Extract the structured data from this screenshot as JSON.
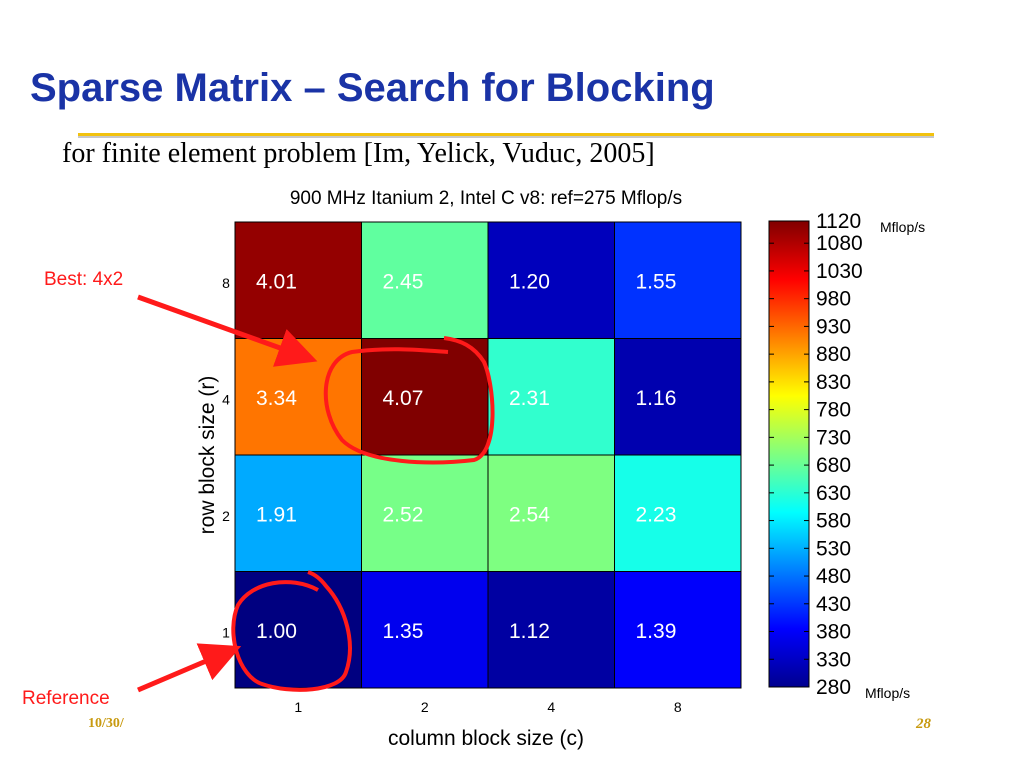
{
  "slide": {
    "title": "Sparse Matrix – Search for Blocking",
    "subtitle": "for finite element problem [Im, Yelick, Vuduc, 2005]",
    "footer_date": "10/30/",
    "page_number": "28"
  },
  "annotations": {
    "best_label": "Best: 4x2",
    "reference_label": "Reference"
  },
  "colors": {
    "title": "#1a33a6",
    "rule": "#f2c20e",
    "annotation": "#ff1a1a",
    "footer": "#c89a10"
  },
  "chart_data": {
    "type": "heatmap",
    "title": "900 MHz Itanium 2, Intel C v8: ref=275 Mflop/s",
    "xlabel": "column block size (c)",
    "ylabel": "row block size (r)",
    "x_categories": [
      "1",
      "2",
      "4",
      "8"
    ],
    "y_categories": [
      "1",
      "2",
      "4",
      "8"
    ],
    "values": [
      [
        1.0,
        1.35,
        1.12,
        1.39
      ],
      [
        1.91,
        2.52,
        2.54,
        2.23
      ],
      [
        3.34,
        4.07,
        2.31,
        1.16
      ],
      [
        4.01,
        2.45,
        1.2,
        1.55
      ]
    ],
    "value_labels": [
      [
        "1.00",
        "1.35",
        "1.12",
        "1.39"
      ],
      [
        "1.91",
        "2.52",
        "2.54",
        "2.23"
      ],
      [
        "3.34",
        "4.07",
        "2.31",
        "1.16"
      ],
      [
        "4.01",
        "2.45",
        "1.20",
        "1.55"
      ]
    ],
    "colormap": "jet",
    "colorbar": {
      "min": 280,
      "max": 1120,
      "ticks": [
        "1120",
        "1080",
        "1030",
        "980",
        "930",
        "880",
        "830",
        "780",
        "730",
        "680",
        "630",
        "580",
        "530",
        "480",
        "430",
        "380",
        "330",
        "280"
      ],
      "unit_top": "Mflop/s",
      "unit_bottom": "Mflop/s"
    },
    "reference_mflops": 275
  }
}
